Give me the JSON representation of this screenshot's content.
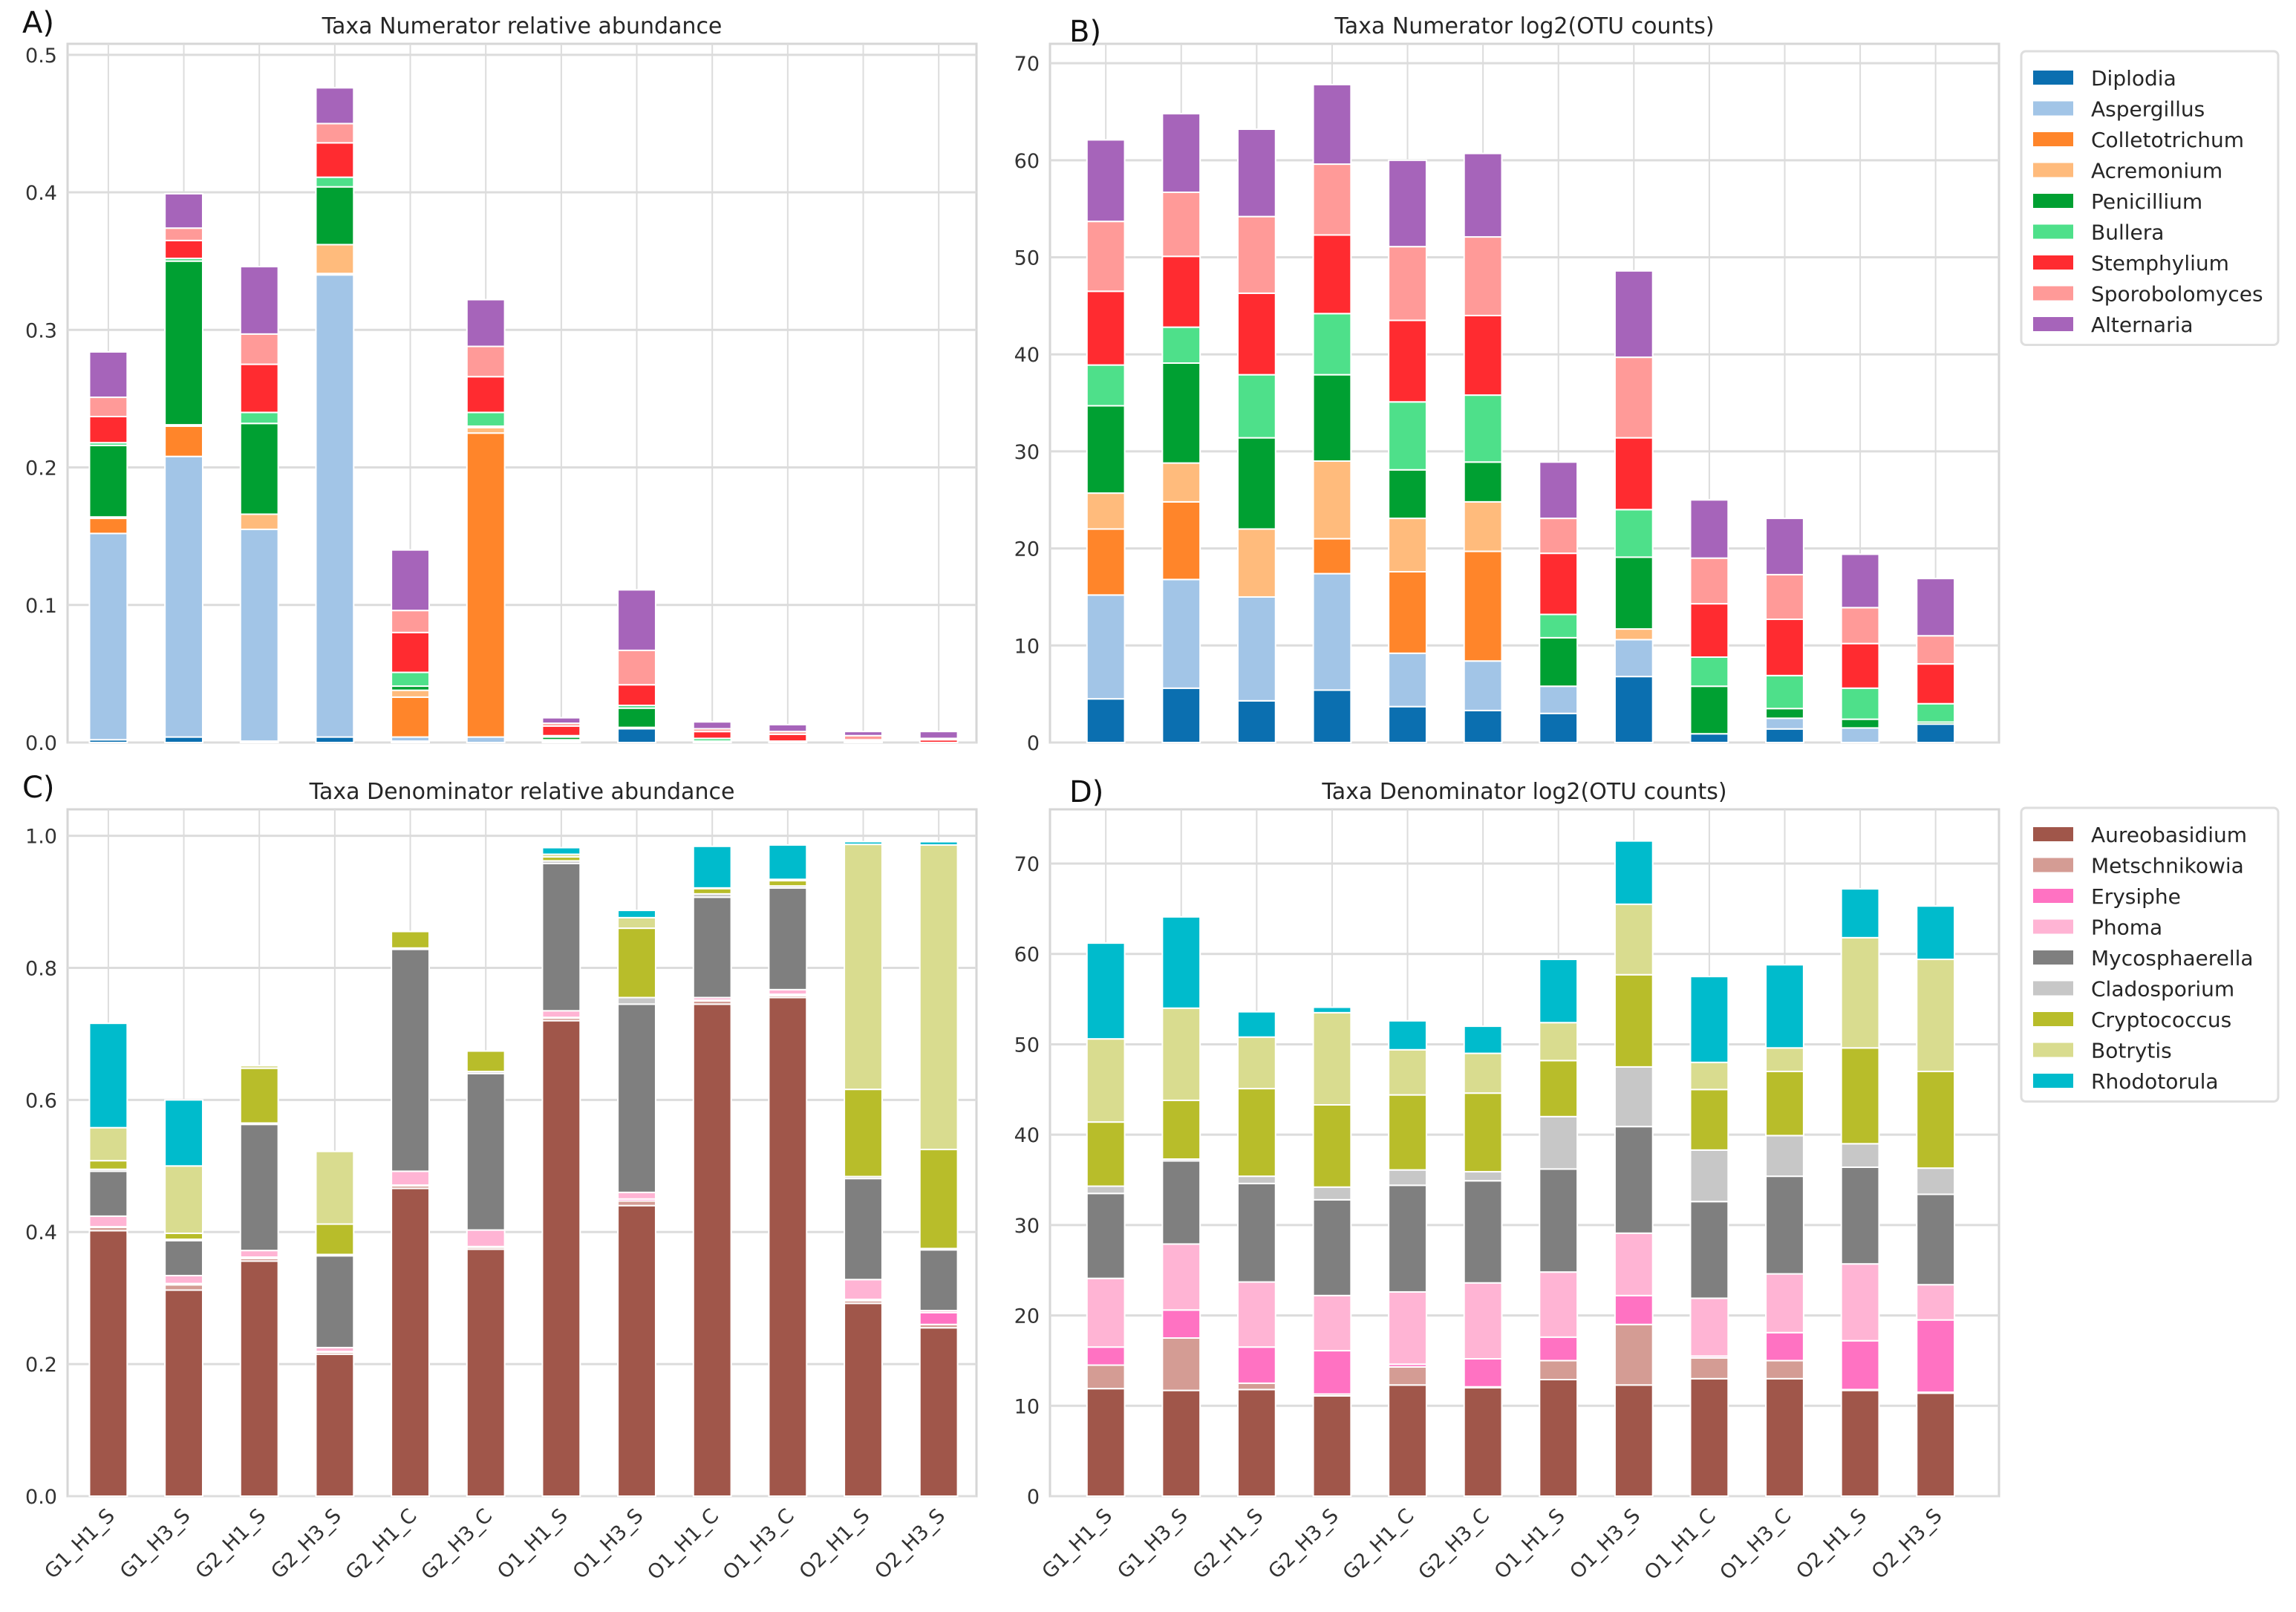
{
  "chart_data": [
    {
      "type": "bar",
      "stacked": true,
      "panel_label": "A)",
      "title": "Taxa Numerator relative abundance",
      "xlabel": "",
      "ylabel": "",
      "ylim": [
        0,
        0.508
      ],
      "yticks": [
        0,
        0.1,
        0.2,
        0.3,
        0.4,
        0.5
      ],
      "yticklabels": [
        "0.0",
        "0.1",
        "0.2",
        "0.3",
        "0.4",
        "0.5"
      ],
      "categories": [
        "G1_H1_S",
        "G1_H3_S",
        "G2_H1_S",
        "G2_H3_S",
        "G2_H1_C",
        "G2_H3_C",
        "O1_H1_S",
        "O1_H3_S",
        "O1_H1_C",
        "O1_H3_C",
        "O2_H1_S",
        "O2_H3_S"
      ],
      "show_xticklabels": false,
      "grid": true,
      "legend": "none",
      "series": [
        {
          "name": "Diplodia",
          "color": "#0b6fb0",
          "values": [
            0.002,
            0.004,
            0.001,
            0.004,
            0.001,
            0,
            0.001,
            0.01,
            0,
            0,
            0,
            0
          ]
        },
        {
          "name": "Aspergillus",
          "color": "#a2c5e7",
          "values": [
            0.15,
            0.204,
            0.154,
            0.336,
            0.003,
            0.004,
            0.001,
            0.001,
            0,
            0,
            0,
            0
          ]
        },
        {
          "name": "Colletotrichum",
          "color": "#ff852a",
          "values": [
            0.011,
            0.022,
            0,
            0.001,
            0.029,
            0.221,
            0,
            0,
            0,
            0,
            0,
            0
          ]
        },
        {
          "name": "Acremonium",
          "color": "#ffbb7c",
          "values": [
            0.001,
            0.001,
            0.011,
            0.021,
            0.005,
            0.004,
            0,
            0,
            0,
            0,
            0,
            0
          ]
        },
        {
          "name": "Penicillium",
          "color": "#00a032",
          "values": [
            0.052,
            0.119,
            0.066,
            0.042,
            0.003,
            0.001,
            0.002,
            0.014,
            0.001,
            0,
            0,
            0
          ]
        },
        {
          "name": "Bullera",
          "color": "#4ee08a",
          "values": [
            0.002,
            0.002,
            0.008,
            0.007,
            0.01,
            0.01,
            0.001,
            0.002,
            0.002,
            0.001,
            0.001,
            0
          ]
        },
        {
          "name": "Stemphylium",
          "color": "#ff2b30",
          "values": [
            0.019,
            0.013,
            0.035,
            0.025,
            0.029,
            0.026,
            0.007,
            0.015,
            0.005,
            0.005,
            0.001,
            0.002
          ]
        },
        {
          "name": "Sporobolomyces",
          "color": "#ff9a98",
          "values": [
            0.014,
            0.009,
            0.022,
            0.014,
            0.016,
            0.022,
            0.002,
            0.025,
            0.002,
            0.002,
            0.003,
            0.001
          ]
        },
        {
          "name": "Alternaria",
          "color": "#a664ba",
          "values": [
            0.033,
            0.025,
            0.049,
            0.026,
            0.044,
            0.034,
            0.004,
            0.044,
            0.005,
            0.005,
            0.003,
            0.005
          ]
        }
      ]
    },
    {
      "type": "bar",
      "stacked": true,
      "panel_label": "B)",
      "title": "Taxa Numerator log2(OTU counts)",
      "xlabel": "",
      "ylabel": "",
      "ylim": [
        0,
        72
      ],
      "yticks": [
        0,
        10,
        20,
        30,
        40,
        50,
        60,
        70
      ],
      "yticklabels": [
        "0",
        "10",
        "20",
        "30",
        "40",
        "50",
        "60",
        "70"
      ],
      "categories": [
        "G1_H1_S",
        "G1_H3_S",
        "G2_H1_S",
        "G2_H3_S",
        "G2_H1_C",
        "G2_H3_C",
        "O1_H1_S",
        "O1_H3_S",
        "O1_H1_C",
        "O1_H3_C",
        "O2_H1_S",
        "O2_H3_S"
      ],
      "show_xticklabels": false,
      "grid": true,
      "legend": "outside-right-top",
      "series": [
        {
          "name": "Diplodia",
          "color": "#0b6fb0",
          "values": [
            4.5,
            5.6,
            4.3,
            5.4,
            3.7,
            3.3,
            3.0,
            6.8,
            0.9,
            1.4,
            0,
            1.9
          ]
        },
        {
          "name": "Aspergillus",
          "color": "#a2c5e7",
          "values": [
            10.7,
            11.2,
            10.7,
            12.0,
            5.5,
            5.1,
            2.8,
            3.8,
            0,
            1.1,
            1.5,
            0
          ]
        },
        {
          "name": "Colletotrichum",
          "color": "#ff852a",
          "values": [
            6.8,
            8.0,
            0,
            3.6,
            8.4,
            11.3,
            0,
            0,
            0,
            0,
            0,
            0
          ]
        },
        {
          "name": "Acremonium",
          "color": "#ffbb7c",
          "values": [
            3.7,
            4.0,
            7.0,
            8.0,
            5.5,
            5.1,
            0,
            1.1,
            0,
            0,
            0,
            0
          ]
        },
        {
          "name": "Penicillium",
          "color": "#00a032",
          "values": [
            9.0,
            10.3,
            9.4,
            8.9,
            5.0,
            4.1,
            5.0,
            7.4,
            4.9,
            1.0,
            0.9,
            0.2
          ]
        },
        {
          "name": "Bullera",
          "color": "#4ee08a",
          "values": [
            4.2,
            3.7,
            6.5,
            6.3,
            7.0,
            6.9,
            2.4,
            4.9,
            3.0,
            3.4,
            3.2,
            1.9
          ]
        },
        {
          "name": "Stemphylium",
          "color": "#ff2b30",
          "values": [
            7.6,
            7.3,
            8.4,
            8.1,
            8.4,
            8.2,
            6.3,
            7.4,
            5.5,
            5.8,
            4.6,
            4.1
          ]
        },
        {
          "name": "Sporobolomyces",
          "color": "#ff9a98",
          "values": [
            7.2,
            6.6,
            7.9,
            7.3,
            7.6,
            8.1,
            3.6,
            8.3,
            4.7,
            4.6,
            3.7,
            2.9
          ]
        },
        {
          "name": "Alternaria",
          "color": "#a664ba",
          "values": [
            8.4,
            8.1,
            9.0,
            8.2,
            8.9,
            8.6,
            5.8,
            8.9,
            6.0,
            5.8,
            5.5,
            5.9
          ]
        }
      ]
    },
    {
      "type": "bar",
      "stacked": true,
      "panel_label": "C)",
      "title": "Taxa Denominator relative abundance",
      "xlabel": "",
      "ylabel": "",
      "ylim": [
        0,
        1.04
      ],
      "yticks": [
        0,
        0.2,
        0.4,
        0.6,
        0.8,
        1.0
      ],
      "yticklabels": [
        "0.0",
        "0.2",
        "0.4",
        "0.6",
        "0.8",
        "1.0"
      ],
      "categories": [
        "G1_H1_S",
        "G1_H3_S",
        "G2_H1_S",
        "G2_H3_S",
        "G2_H1_C",
        "G2_H3_C",
        "O1_H1_S",
        "O1_H3_S",
        "O1_H1_C",
        "O1_H3_C",
        "O2_H1_S",
        "O2_H3_S"
      ],
      "show_xticklabels": true,
      "grid": true,
      "legend": "none",
      "series": [
        {
          "name": "Aureobasidium",
          "color": "#a0564a",
          "values": [
            0.402,
            0.312,
            0.356,
            0.215,
            0.466,
            0.374,
            0.72,
            0.44,
            0.745,
            0.755,
            0.292,
            0.255
          ]
        },
        {
          "name": "Metschnikowia",
          "color": "#d49c94",
          "values": [
            0.005,
            0.008,
            0.004,
            0.003,
            0.004,
            0.003,
            0.004,
            0.007,
            0.005,
            0.003,
            0.004,
            0.005
          ]
        },
        {
          "name": "Erysiphe",
          "color": "#ff72c2",
          "values": [
            0.001,
            0.002,
            0.002,
            0.001,
            0.001,
            0.001,
            0.001,
            0.003,
            0.001,
            0.002,
            0.002,
            0.018
          ]
        },
        {
          "name": "Phoma",
          "color": "#ffb4d4",
          "values": [
            0.016,
            0.012,
            0.01,
            0.006,
            0.021,
            0.025,
            0.01,
            0.01,
            0.004,
            0.007,
            0.03,
            0.003
          ]
        },
        {
          "name": "Mycosphaerella",
          "color": "#7f7f7f",
          "values": [
            0.068,
            0.053,
            0.191,
            0.139,
            0.336,
            0.237,
            0.223,
            0.285,
            0.152,
            0.154,
            0.153,
            0.092
          ]
        },
        {
          "name": "Cladosporium",
          "color": "#c7c7c7",
          "values": [
            0.003,
            0.002,
            0.002,
            0.002,
            0.002,
            0.003,
            0.004,
            0.01,
            0.005,
            0.003,
            0.003,
            0.002
          ]
        },
        {
          "name": "Cryptococcus",
          "color": "#b8bd2a",
          "values": [
            0.013,
            0.009,
            0.083,
            0.046,
            0.025,
            0.031,
            0.006,
            0.105,
            0.008,
            0.008,
            0.132,
            0.15
          ]
        },
        {
          "name": "Botrytis",
          "color": "#d9dc8f",
          "values": [
            0.05,
            0.102,
            0.004,
            0.11,
            0,
            0,
            0.004,
            0.016,
            0.001,
            0.002,
            0.371,
            0.461
          ]
        },
        {
          "name": "Rhodotorula",
          "color": "#00bbcc",
          "values": [
            0.158,
            0.1,
            0,
            0,
            0,
            0,
            0.01,
            0.011,
            0.063,
            0.052,
            0.004,
            0.005
          ]
        }
      ]
    },
    {
      "type": "bar",
      "stacked": true,
      "panel_label": "D)",
      "title": "Taxa Denominator log2(OTU counts)",
      "xlabel": "",
      "ylabel": "",
      "ylim": [
        0,
        76
      ],
      "yticks": [
        0,
        10,
        20,
        30,
        40,
        50,
        60,
        70
      ],
      "yticklabels": [
        "0",
        "10",
        "20",
        "30",
        "40",
        "50",
        "60",
        "70"
      ],
      "categories": [
        "G1_H1_S",
        "G1_H3_S",
        "G2_H1_S",
        "G2_H3_S",
        "G2_H1_C",
        "G2_H3_C",
        "O1_H1_S",
        "O1_H3_S",
        "O1_H1_C",
        "O1_H3_C",
        "O2_H1_S",
        "O2_H3_S"
      ],
      "show_xticklabels": true,
      "grid": true,
      "legend": "outside-right-top",
      "series": [
        {
          "name": "Aureobasidium",
          "color": "#a0564a",
          "values": [
            11.9,
            11.7,
            11.8,
            11.1,
            12.3,
            12.0,
            12.9,
            12.3,
            13.0,
            13.0,
            11.7,
            11.4
          ]
        },
        {
          "name": "Metschnikowia",
          "color": "#d49c94",
          "values": [
            2.6,
            5.8,
            0.7,
            0.2,
            2.0,
            0.1,
            2.1,
            6.7,
            2.3,
            2.0,
            0.1,
            0.1
          ]
        },
        {
          "name": "Erysiphe",
          "color": "#ff72c2",
          "values": [
            2.0,
            3.1,
            4.0,
            4.8,
            0.3,
            3.1,
            2.6,
            3.2,
            0.2,
            3.1,
            5.4,
            8.0
          ]
        },
        {
          "name": "Phoma",
          "color": "#ffb4d4",
          "values": [
            7.6,
            7.3,
            7.2,
            6.1,
            8.0,
            8.4,
            7.2,
            6.9,
            6.4,
            6.5,
            8.5,
            3.9
          ]
        },
        {
          "name": "Mycosphaerella",
          "color": "#7f7f7f",
          "values": [
            9.4,
            9.2,
            10.9,
            10.6,
            11.8,
            11.3,
            11.4,
            11.8,
            10.7,
            10.8,
            10.7,
            10.0
          ]
        },
        {
          "name": "Cladosporium",
          "color": "#c7c7c7",
          "values": [
            0.8,
            0.2,
            0.8,
            1.4,
            1.7,
            1.0,
            5.8,
            6.6,
            5.7,
            4.5,
            2.6,
            2.9
          ]
        },
        {
          "name": "Cryptococcus",
          "color": "#b8bd2a",
          "values": [
            7.1,
            6.5,
            9.7,
            9.1,
            8.3,
            8.7,
            6.2,
            10.2,
            6.7,
            7.1,
            10.6,
            10.7
          ]
        },
        {
          "name": "Botrytis",
          "color": "#d9dc8f",
          "values": [
            9.2,
            10.2,
            5.7,
            10.2,
            5.0,
            4.4,
            4.2,
            7.8,
            3.0,
            2.6,
            12.2,
            12.4
          ]
        },
        {
          "name": "Rhodotorula",
          "color": "#00bbcc",
          "values": [
            10.6,
            10.1,
            2.8,
            0.6,
            3.2,
            3.0,
            7.0,
            7.0,
            9.5,
            9.2,
            5.4,
            5.9
          ]
        }
      ]
    }
  ]
}
